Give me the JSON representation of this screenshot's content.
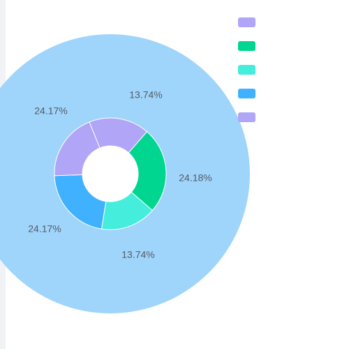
{
  "chart_data": {
    "type": "pie",
    "subtype": "nested-donut",
    "grid": false,
    "legend_position": "top-right",
    "outer_ring": {
      "values": [
        100
      ],
      "color": "#9fd5fb"
    },
    "inner_ring": {
      "slices": [
        {
          "value": 24.18,
          "label": "24.18%",
          "color": "#00d68f"
        },
        {
          "value": 13.74,
          "label": "13.74%",
          "color": "#45eddc"
        },
        {
          "value": 24.17,
          "label": "24.17%",
          "color": "#3fb1fe"
        },
        {
          "value": 24.17,
          "label": "24.17%",
          "color": "#b0a5f7"
        },
        {
          "value": 13.74,
          "label": "13.74%",
          "color": "#b0a5f7"
        }
      ]
    },
    "legend": [
      {
        "color": "#b0a5f7"
      },
      {
        "color": "#00d68f"
      },
      {
        "color": "#45eddc"
      },
      {
        "color": "#3fb1fe"
      },
      {
        "color": "#b0a5f7"
      }
    ]
  }
}
